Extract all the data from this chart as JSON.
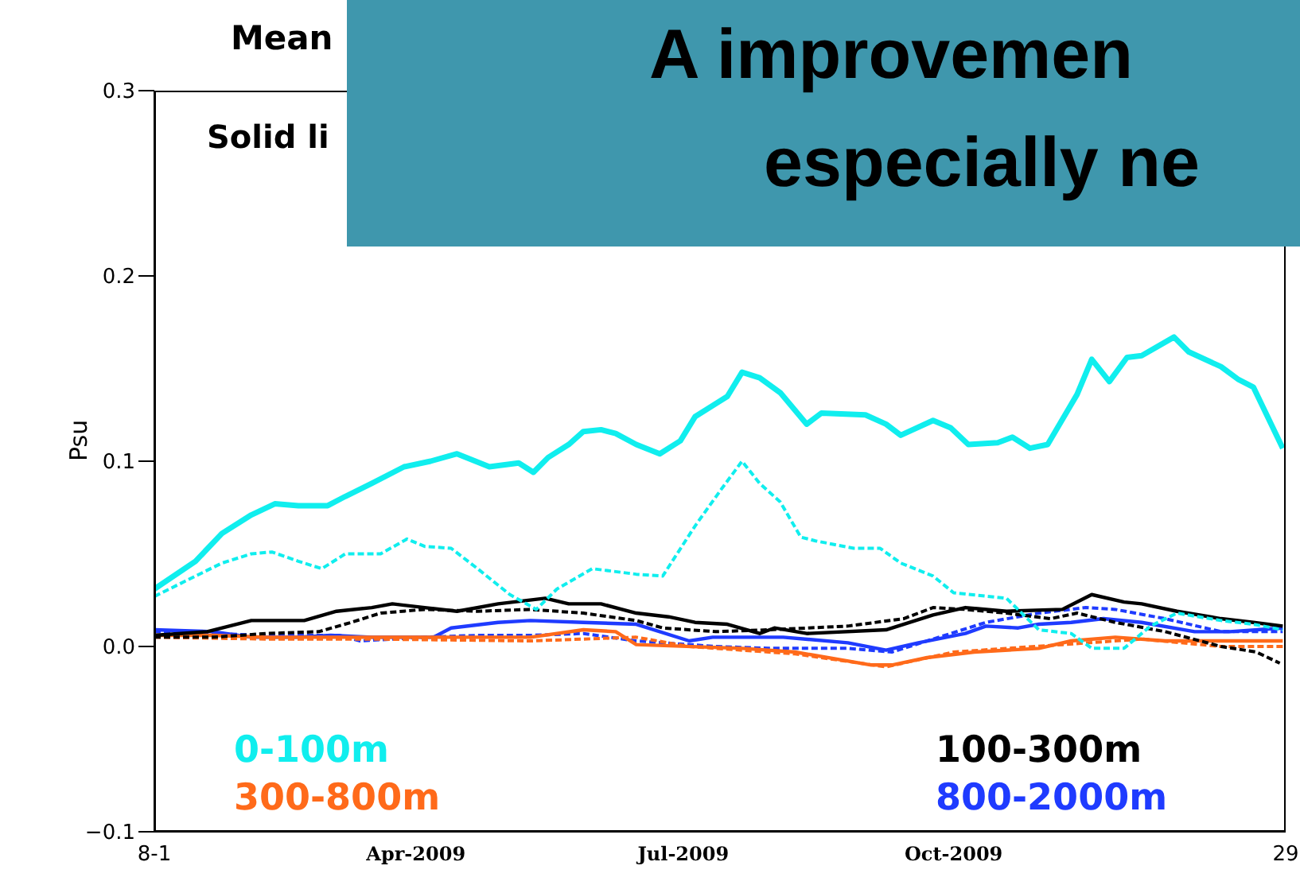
{
  "chart_data": {
    "type": "line",
    "title": "Mean",
    "ylabel": "Psu",
    "annotations": [
      "Solid li",
      "A improvemen",
      "especially ne"
    ],
    "xlim": [
      "2009-01-02",
      "2010-01-22"
    ],
    "xticks": [
      {
        "value": "2009-01-02",
        "label": "8-1"
      },
      {
        "value": "2009-04",
        "label": "Apr-2009"
      },
      {
        "value": "2009-07",
        "label": "Jul-2009"
      },
      {
        "value": "2009-10",
        "label": "Oct-2009"
      },
      {
        "value": "2010-01-22",
        "label": "29"
      }
    ],
    "ylim": [
      -0.1,
      0.3
    ],
    "yticks": [
      {
        "value": -0.1,
        "label": "−0.1"
      },
      {
        "value": 0,
        "label": "0.0"
      },
      0.1,
      0.2,
      0.3
    ],
    "legend": "bottom",
    "series": [
      {
        "name": "0-100m",
        "color": "#10eeee",
        "line_style": "solid",
        "x": [
          "2009-01-02",
          "2009-01-16",
          "2009-01-25",
          "2009-02-04",
          "2009-02-12",
          "2009-02-20",
          "2009-03-02",
          "2009-03-08",
          "2009-03-17",
          "2009-03-28",
          "2009-04-06",
          "2009-04-15",
          "2009-04-26",
          "2009-05-06",
          "2009-05-11",
          "2009-05-16",
          "2009-05-23",
          "2009-05-28",
          "2009-06-03",
          "2009-06-08",
          "2009-06-15",
          "2009-06-23",
          "2009-06-30",
          "2009-07-05",
          "2009-07-16",
          "2009-07-21",
          "2009-07-27",
          "2009-08-03",
          "2009-08-12",
          "2009-08-17",
          "2009-09-01",
          "2009-09-08",
          "2009-09-13",
          "2009-09-24",
          "2009-09-30",
          "2009-10-06",
          "2009-10-16",
          "2009-10-21",
          "2009-10-27",
          "2009-11-02",
          "2009-11-12",
          "2009-11-17",
          "2009-11-23",
          "2009-11-29",
          "2009-12-04",
          "2009-12-15",
          "2009-12-20",
          "2009-12-31",
          "2010-01-06",
          "2010-01-11",
          "2010-01-21"
        ],
        "values": [
          0.031,
          0.046,
          0.061,
          0.071,
          0.077,
          0.076,
          0.076,
          0.081,
          0.088,
          0.097,
          0.1,
          0.104,
          0.097,
          0.099,
          0.094,
          0.102,
          0.109,
          0.116,
          0.117,
          0.115,
          0.109,
          0.104,
          0.111,
          0.124,
          0.135,
          0.148,
          0.145,
          0.137,
          0.12,
          0.126,
          0.125,
          0.12,
          0.114,
          0.122,
          0.118,
          0.109,
          0.11,
          0.113,
          0.107,
          0.109,
          0.136,
          0.155,
          0.143,
          0.156,
          0.157,
          0.167,
          0.159,
          0.151,
          0.144,
          0.14,
          0.107
        ]
      },
      {
        "color": "#10eeee",
        "line_style": "dashed",
        "x": [
          "2009-01-02",
          "2009-01-16",
          "2009-01-25",
          "2009-02-04",
          "2009-02-11",
          "2009-02-20",
          "2009-02-28",
          "2009-03-08",
          "2009-03-20",
          "2009-03-29",
          "2009-04-04",
          "2009-04-13",
          "2009-04-22",
          "2009-05-03",
          "2009-05-12",
          "2009-05-19",
          "2009-05-31",
          "2009-06-15",
          "2009-06-24",
          "2009-07-05",
          "2009-07-14",
          "2009-07-21",
          "2009-07-27",
          "2009-08-03",
          "2009-08-10",
          "2009-08-15",
          "2009-08-28",
          "2009-09-06",
          "2009-09-13",
          "2009-09-24",
          "2009-10-01",
          "2009-10-19",
          "2009-10-30",
          "2009-11-10",
          "2009-11-17",
          "2009-11-28",
          "2009-12-07",
          "2009-12-16",
          "2009-12-31",
          "2010-01-11",
          "2010-01-21"
        ],
        "values": [
          0.027,
          0.038,
          0.045,
          0.05,
          0.051,
          0.046,
          0.042,
          0.05,
          0.05,
          0.058,
          0.054,
          0.053,
          0.042,
          0.028,
          0.02,
          0.031,
          0.042,
          0.039,
          0.038,
          0.065,
          0.085,
          0.1,
          0.088,
          0.078,
          0.059,
          0.057,
          0.053,
          0.053,
          0.045,
          0.038,
          0.029,
          0.026,
          0.009,
          0.007,
          -0.001,
          -0.001,
          0.011,
          0.018,
          0.014,
          0.012,
          0.009
        ]
      },
      {
        "name": "100-300m",
        "color": "#000000",
        "line_style": "solid",
        "x": [
          "2009-01-02",
          "2009-01-20",
          "2009-02-04",
          "2009-02-22",
          "2009-03-05",
          "2009-03-17",
          "2009-03-24",
          "2009-04-04",
          "2009-04-15",
          "2009-04-29",
          "2009-05-15",
          "2009-05-23",
          "2009-06-03",
          "2009-06-15",
          "2009-06-26",
          "2009-07-05",
          "2009-07-16",
          "2009-07-27",
          "2009-08-01",
          "2009-08-12",
          "2009-09-08",
          "2009-09-24",
          "2009-10-05",
          "2009-10-19",
          "2009-11-07",
          "2009-11-17",
          "2009-11-28",
          "2009-12-04",
          "2009-12-16",
          "2009-12-31",
          "2010-01-11",
          "2010-01-21"
        ],
        "values": [
          0.006,
          0.008,
          0.014,
          0.014,
          0.019,
          0.021,
          0.023,
          0.021,
          0.019,
          0.023,
          0.026,
          0.023,
          0.023,
          0.018,
          0.016,
          0.013,
          0.012,
          0.007,
          0.01,
          0.007,
          0.009,
          0.017,
          0.021,
          0.019,
          0.02,
          0.028,
          0.024,
          0.023,
          0.019,
          0.015,
          0.013,
          0.011
        ]
      },
      {
        "color": "#000000",
        "line_style": "dashed",
        "x": [
          "2009-01-02",
          "2009-01-22",
          "2009-02-09",
          "2009-02-27",
          "2009-03-10",
          "2009-03-20",
          "2009-04-04",
          "2009-04-22",
          "2009-05-10",
          "2009-05-28",
          "2009-06-15",
          "2009-06-24",
          "2009-07-12",
          "2009-07-30",
          "2009-08-26",
          "2009-09-14",
          "2009-09-24",
          "2009-10-05",
          "2009-10-19",
          "2009-11-03",
          "2009-11-12",
          "2009-11-25",
          "2009-12-12",
          "2009-12-31",
          "2010-01-12",
          "2010-01-20"
        ],
        "values": [
          0.005,
          0.005,
          0.007,
          0.008,
          0.013,
          0.018,
          0.02,
          0.019,
          0.02,
          0.018,
          0.014,
          0.01,
          0.008,
          0.009,
          0.011,
          0.015,
          0.021,
          0.02,
          0.018,
          0.015,
          0.018,
          0.013,
          0.008,
          0,
          -0.003,
          -0.009
        ]
      },
      {
        "name": "300-800m",
        "color": "#ff6a1a",
        "line_style": "solid",
        "x": [
          "2009-01-02",
          "2009-01-22",
          "2009-02-09",
          "2009-03-17",
          "2009-05-10",
          "2009-05-28",
          "2009-06-08",
          "2009-06-15",
          "2009-07-21",
          "2009-08-08",
          "2009-09-03",
          "2009-09-10",
          "2009-09-22",
          "2009-10-08",
          "2009-10-30",
          "2009-11-10",
          "2009-11-25",
          "2009-12-12",
          "2009-12-31",
          "2010-01-21"
        ],
        "values": [
          0.006,
          0.006,
          0.005,
          0.005,
          0.005,
          0.009,
          0.008,
          0.001,
          -0.001,
          -0.003,
          -0.01,
          -0.01,
          -0.006,
          -0.003,
          -0.001,
          0.003,
          0.005,
          0.003,
          0.003,
          0.003
        ]
      },
      {
        "color": "#ff6a1a",
        "line_style": "dashed",
        "x": [
          "2009-01-02",
          "2009-02-09",
          "2009-03-17",
          "2009-05-10",
          "2009-06-15",
          "2009-07-03",
          "2009-08-08",
          "2009-09-08",
          "2009-10-01",
          "2009-11-07",
          "2009-12-04",
          "2009-12-31",
          "2010-01-21"
        ],
        "values": [
          0.005,
          0.004,
          0.004,
          0.003,
          0.005,
          0,
          -0.004,
          -0.011,
          -0.003,
          0.001,
          0.004,
          0,
          0
        ]
      },
      {
        "name": "800-2000m",
        "color": "#1f3bff",
        "line_style": "solid",
        "x": [
          "2009-01-02",
          "2009-01-22",
          "2009-02-04",
          "2009-02-20",
          "2009-03-03",
          "2009-03-17",
          "2009-03-28",
          "2009-04-07",
          "2009-04-13",
          "2009-04-29",
          "2009-05-10",
          "2009-05-28",
          "2009-06-15",
          "2009-07-03",
          "2009-07-11",
          "2009-08-04",
          "2009-08-26",
          "2009-09-08",
          "2009-09-19",
          "2009-10-05",
          "2009-10-12",
          "2009-10-23",
          "2009-10-30",
          "2009-11-10",
          "2009-11-21",
          "2009-12-04",
          "2009-12-22",
          "2010-01-03",
          "2010-01-21"
        ],
        "values": [
          0.009,
          0.008,
          0.005,
          0.005,
          0.006,
          0.005,
          0.005,
          0.005,
          0.01,
          0.013,
          0.014,
          0.013,
          0.012,
          0.003,
          0.005,
          0.005,
          0.002,
          -0.002,
          0.002,
          0.007,
          0.011,
          0.01,
          0.012,
          0.013,
          0.015,
          0.013,
          0.008,
          0.008,
          0.01
        ]
      },
      {
        "color": "#1f3bff",
        "line_style": "dashed",
        "x": [
          "2009-01-02",
          "2009-01-22",
          "2009-02-09",
          "2009-03-06",
          "2009-03-13",
          "2009-04-04",
          "2009-04-22",
          "2009-05-10",
          "2009-05-28",
          "2009-06-15",
          "2009-07-12",
          "2009-07-30",
          "2009-08-26",
          "2009-09-10",
          "2009-09-24",
          "2009-10-12",
          "2009-10-30",
          "2009-11-15",
          "2009-11-25",
          "2009-12-12",
          "2009-12-31",
          "2010-01-21"
        ],
        "values": [
          0.008,
          0.007,
          0.006,
          0.006,
          0.003,
          0.005,
          0.006,
          0.006,
          0.007,
          0.003,
          0,
          -0.001,
          -0.001,
          -0.003,
          0.004,
          0.013,
          0.018,
          0.021,
          0.02,
          0.015,
          0.008,
          0.008
        ]
      }
    ]
  }
}
